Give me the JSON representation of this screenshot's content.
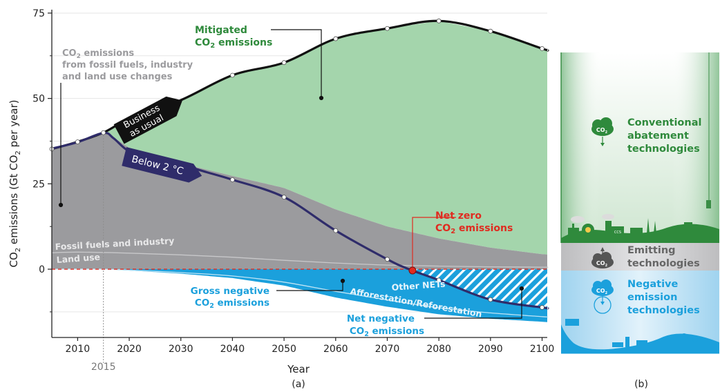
{
  "chart_data": [
    {
      "panel": "(a)",
      "type": "area",
      "xlabel": "Year",
      "ylabel": {
        "main": "CO",
        "sub1": "2",
        "mid": " emissions (Gt CO",
        "sub2": "2",
        "end": " per year)"
      },
      "xlim": [
        2005,
        2101
      ],
      "ylim": [
        -20,
        76
      ],
      "x_ticks": [
        "2010",
        "2020",
        "2030",
        "2040",
        "2050",
        "2060",
        "2070",
        "2080",
        "2090",
        "2100"
      ],
      "y_ticks": [
        "0",
        "25",
        "50",
        "75"
      ],
      "marker_year": "2015",
      "grid": true,
      "series": [
        {
          "name": "Business as usual",
          "color": "#111111",
          "points": [
            [
              2005,
              35.2
            ],
            [
              2010,
              37.3
            ],
            [
              2015,
              40
            ],
            [
              2020,
              44
            ],
            [
              2030,
              49.5
            ],
            [
              2040,
              56.8
            ],
            [
              2050,
              60.5
            ],
            [
              2060,
              67.5
            ],
            [
              2070,
              70.5
            ],
            [
              2080,
              72.7
            ],
            [
              2090,
              69.7
            ],
            [
              2100,
              64.6
            ],
            [
              2101,
              64.2
            ]
          ]
        },
        {
          "name": "Below 2 °C",
          "color": "#2f2c6a",
          "points": [
            [
              2005,
              35.3
            ],
            [
              2010,
              37.2
            ],
            [
              2015,
              39.9
            ],
            [
              2017,
              38.3
            ],
            [
              2020,
              34.5
            ],
            [
              2025,
              32.2
            ],
            [
              2030,
              30.6
            ],
            [
              2035,
              28.4
            ],
            [
              2040,
              26.2
            ],
            [
              2050,
              21.1
            ],
            [
              2060,
              11.3
            ],
            [
              2070,
              2.9
            ],
            [
              2074.2,
              0
            ],
            [
              2080,
              -3.2
            ],
            [
              2090,
              -8.9
            ],
            [
              2100,
              -11.2
            ],
            [
              2101,
              -11.4
            ]
          ]
        },
        {
          "name": "CO₂ emissions from fossil fuels, industry and land use changes (upper boundary)",
          "color": "#9b9b9e",
          "points": [
            [
              2005,
              35.2
            ],
            [
              2010,
              37.3
            ],
            [
              2015,
              40
            ],
            [
              2017,
              38.6
            ],
            [
              2020,
              35.5
            ],
            [
              2030,
              31
            ],
            [
              2040,
              27.3
            ],
            [
              2050,
              23.8
            ],
            [
              2060,
              17.5
            ],
            [
              2070,
              12.5
            ],
            [
              2080,
              9
            ],
            [
              2090,
              6.3
            ],
            [
              2100,
              4.4
            ],
            [
              2101,
              4.3
            ]
          ]
        },
        {
          "name": "Land use",
          "points": [
            [
              2005,
              4.8
            ],
            [
              2010,
              5
            ],
            [
              2020,
              4.7
            ],
            [
              2030,
              4.2
            ],
            [
              2040,
              3.5
            ],
            [
              2050,
              2.6
            ],
            [
              2060,
              1.8
            ],
            [
              2070,
              1.2
            ],
            [
              2080,
              0.9
            ],
            [
              2090,
              0.7
            ],
            [
              2100,
              0.6
            ],
            [
              2101,
              0.6
            ]
          ]
        },
        {
          "name": "Afforestation/Reforestation",
          "points": [
            [
              2005,
              0
            ],
            [
              2015,
              0
            ],
            [
              2020,
              -0.3
            ],
            [
              2030,
              -1
            ],
            [
              2040,
              -2
            ],
            [
              2050,
              -3.8
            ],
            [
              2060,
              -6.5
            ],
            [
              2070,
              -9
            ],
            [
              2080,
              -11.3
            ],
            [
              2090,
              -12.8
            ],
            [
              2100,
              -13.9
            ],
            [
              2101,
              -14
            ]
          ]
        },
        {
          "name": "Gross negative CO₂ emissions (lower boundary)",
          "color": "#1ba0dc",
          "points": [
            [
              2005,
              0
            ],
            [
              2015,
              0
            ],
            [
              2020,
              -0.4
            ],
            [
              2030,
              -1.3
            ],
            [
              2040,
              -2.6
            ],
            [
              2050,
              -4.8
            ],
            [
              2060,
              -8.3
            ],
            [
              2070,
              -11
            ],
            [
              2080,
              -13.2
            ],
            [
              2090,
              -14.5
            ],
            [
              2100,
              -15.4
            ],
            [
              2101,
              -15.5
            ]
          ]
        }
      ],
      "labels": {
        "mitigated": {
          "line1": "Mitigated",
          "line2_pre": "CO",
          "line2_sub": "2",
          "line2_post": " emissions"
        },
        "co2_sources": {
          "line1_pre": "CO",
          "line1_sub": "2",
          "line1_post": " emissions",
          "line2": "from fossil fuels, industry",
          "line3": "and land use changes"
        },
        "bau": {
          "line1": "Business",
          "line2": "as usual"
        },
        "below2": "Below 2 °C",
        "net_zero": {
          "line1": "Net zero",
          "line2_pre": "CO",
          "line2_sub": "2",
          "line2_post": " emissions"
        },
        "fossil": "Fossil fuels and industry",
        "land_use": "Land use",
        "other_nets": "Other NETs",
        "affor": "Afforestation/Reforestation",
        "gross": {
          "line1": "Gross negative",
          "line2_pre": "CO",
          "line2_sub": "2",
          "line2_post": " emissions"
        },
        "net_neg": {
          "line1": "Net negative",
          "line2_pre": "CO",
          "line2_sub": "2",
          "line2_post": " emissions"
        }
      },
      "colors": {
        "mitigated": "#a4d5ac",
        "emissions": "#9b9b9e",
        "negative": "#1ba0dc",
        "dark_green": "#2f8a3c",
        "red": "#e02b20"
      }
    },
    {
      "panel": "(b)",
      "type": "diagram",
      "categories": [
        {
          "title_lines": [
            "Conventional",
            "abatement",
            "technologies"
          ],
          "icon": "co2-cloud-down-icon",
          "color": "#2f8a3c"
        },
        {
          "title_lines": [
            "Emitting",
            "technologies"
          ],
          "icon": "co2-cloud-up-icon",
          "color": "#666666"
        },
        {
          "title_lines": [
            "Negative",
            "emission",
            "technologies"
          ],
          "icon": "co2-cloud-capture-icon",
          "color": "#1ba0dc"
        }
      ],
      "icon_texts": {
        "co2": "CO",
        "co2_sub": "2",
        "ccs": "CCS"
      }
    }
  ],
  "panel_labels": [
    "(a)",
    "(b)"
  ]
}
